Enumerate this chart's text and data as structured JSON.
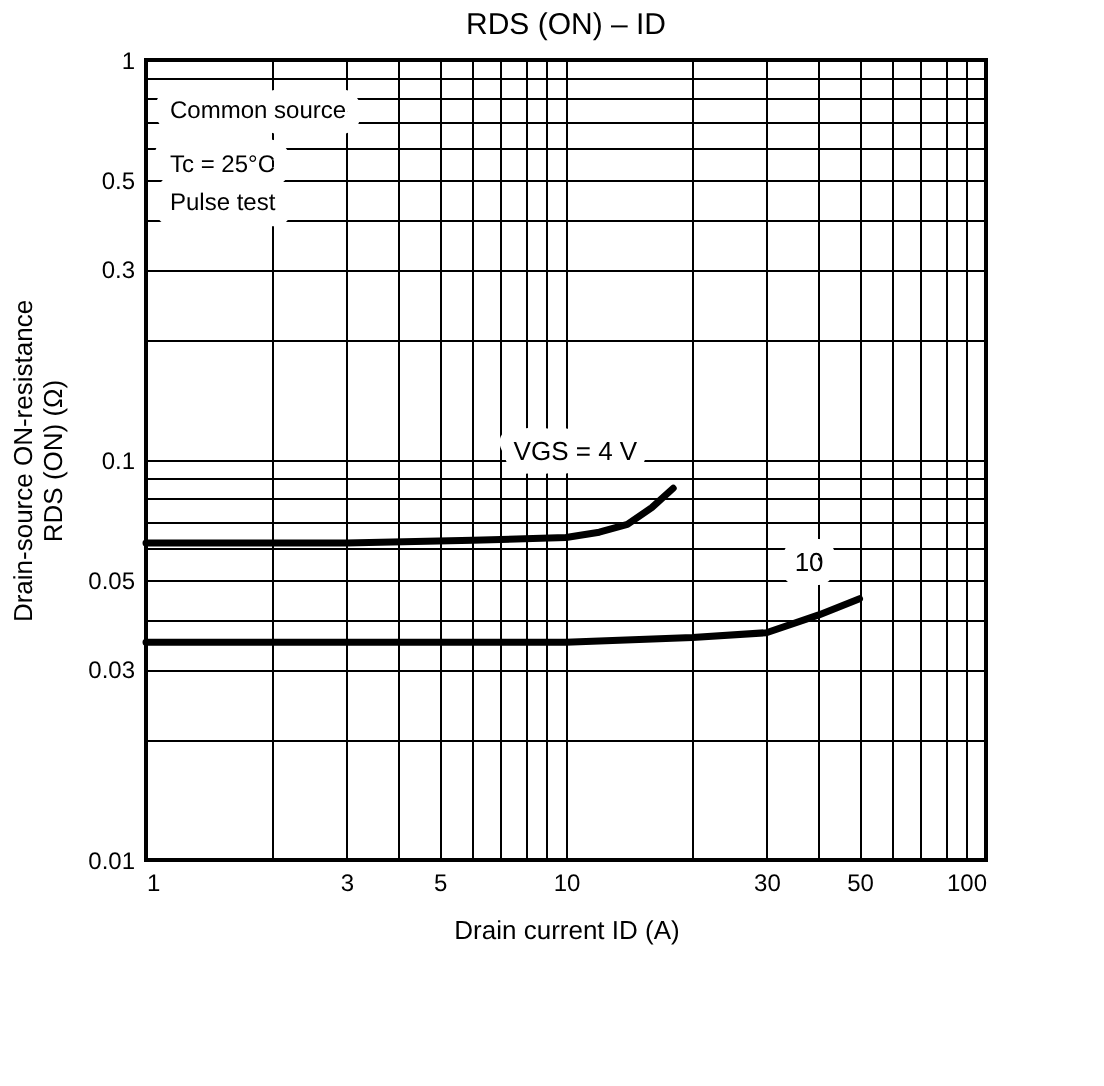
{
  "chart_data": {
    "type": "line",
    "title": "RDS (ON) – ID",
    "xlabel": "Drain current ID (A)",
    "ylabel": "Drain-source ON-resistance RDS (ON) (Ω)",
    "annotations": [
      "Common source",
      "Tc = 25°C",
      "Pulse test"
    ],
    "log": "xy",
    "grid": true,
    "legend": false,
    "marker": "none",
    "line_style": "solid",
    "xlim": [
      1,
      100
    ],
    "ylim": [
      0.01,
      1
    ],
    "xticks": [
      1,
      {
        "value": 2,
        "label": null
      },
      3,
      {
        "value": 4,
        "label": null
      },
      5,
      {
        "value": 6,
        "label": null
      },
      {
        "value": 7,
        "label": null
      },
      {
        "value": 8,
        "label": null
      },
      {
        "value": 9,
        "label": null
      },
      10,
      {
        "value": 20,
        "label": null
      },
      30,
      {
        "value": 40,
        "label": null
      },
      50,
      {
        "value": 60,
        "label": null
      },
      {
        "value": 70,
        "label": null
      },
      {
        "value": 80,
        "label": null
      },
      {
        "value": 90,
        "label": null
      },
      100
    ],
    "yticks": [
      0.01,
      {
        "value": 0.02,
        "label": null
      },
      0.03,
      {
        "value": 0.04,
        "label": null
      },
      0.05,
      {
        "value": 0.06,
        "label": null
      },
      {
        "value": 0.07,
        "label": null
      },
      {
        "value": 0.08,
        "label": null
      },
      {
        "value": 0.09,
        "label": null
      },
      0.1,
      {
        "value": 0.2,
        "label": null
      },
      0.3,
      {
        "value": 0.4,
        "label": null
      },
      0.5,
      {
        "value": 0.6,
        "label": null
      },
      {
        "value": 0.7,
        "label": null
      },
      {
        "value": 0.8,
        "label": null
      },
      {
        "value": 0.9,
        "label": null
      },
      1
    ],
    "series": [
      {
        "name": "VGS = 4 V",
        "color": "#000000",
        "x": [
          1,
          3,
          6,
          10,
          12,
          14,
          16,
          18
        ],
        "values": [
          0.062,
          0.062,
          0.063,
          0.064,
          0.066,
          0.069,
          0.076,
          0.085
        ]
      },
      {
        "name": "10",
        "color": "#000000",
        "x": [
          1,
          5,
          10,
          20,
          30,
          40,
          50
        ],
        "values": [
          0.035,
          0.035,
          0.035,
          0.036,
          0.037,
          0.041,
          0.045
        ]
      }
    ]
  }
}
